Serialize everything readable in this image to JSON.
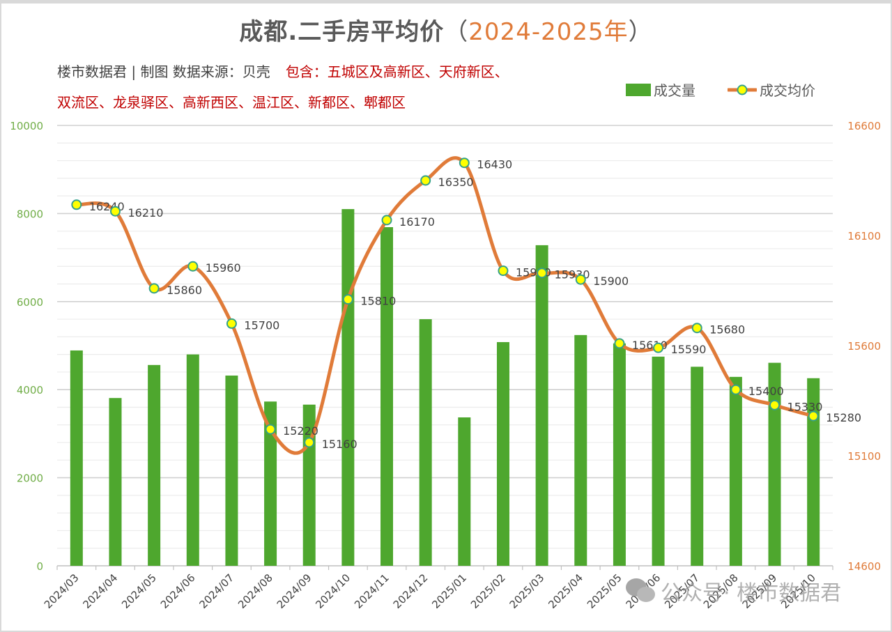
{
  "header": {
    "title_main": "成都.二手房平均价",
    "title_paren_open": "（",
    "title_years": "2024-2025年",
    "title_paren_close": "）",
    "credit": "楼市数据君 | 制图  数据来源：贝壳",
    "includes_line1": "包含：五城区及高新区、天府新区、",
    "includes_line2": "双流区、龙泉驿区、高新西区、温江区、新都区、郫都区"
  },
  "legend": {
    "bar_label": "成交量",
    "line_label": "成交均价"
  },
  "watermark": {
    "icon": "wechat-icon",
    "text": "公众号· 楼市数据君"
  },
  "colors": {
    "bar": "#4ea72e",
    "line": "#e07b39",
    "marker_fill": "#ffff00",
    "marker_stroke": "#33a08a",
    "left_axis_text": "#70ad47",
    "right_axis_text": "#e07b39",
    "grid": "#d9d9d9",
    "label_text": "#404040"
  },
  "chart_data": {
    "type": "bar+line",
    "title": "成都.二手房平均价（2024-2025年）",
    "categories": [
      "2024/03",
      "2024/04",
      "2024/05",
      "2024/06",
      "2024/07",
      "2024/08",
      "2024/09",
      "2024/10",
      "2024/11",
      "2024/12",
      "2025/01",
      "2025/02",
      "2025/03",
      "2025/04",
      "2025/05",
      "2025/06",
      "2025/07",
      "2025/08",
      "2025/09",
      "2025/10"
    ],
    "series": [
      {
        "name": "成交量",
        "type": "bar",
        "axis": "left",
        "values": [
          4890,
          3810,
          4560,
          4800,
          4320,
          3730,
          3660,
          8100,
          7690,
          5600,
          3370,
          5080,
          7280,
          5240,
          5050,
          4750,
          4520,
          4290,
          4610,
          4260
        ]
      },
      {
        "name": "成交均价",
        "type": "line",
        "axis": "right",
        "smooth": true,
        "data_labels": true,
        "values": [
          16240,
          16210,
          15860,
          15960,
          15700,
          15220,
          15160,
          15810,
          16170,
          16350,
          16430,
          15940,
          15930,
          15900,
          15610,
          15590,
          15680,
          15400,
          15330,
          15280
        ]
      }
    ],
    "left_axis": {
      "min": 0,
      "max": 10000,
      "ticks": [
        0,
        2000,
        4000,
        6000,
        8000,
        10000
      ]
    },
    "right_axis": {
      "min": 14600,
      "max": 16600,
      "ticks": [
        14600,
        15100,
        15600,
        16100,
        16600
      ]
    },
    "xlabel": "",
    "ylabel": "",
    "grid": true,
    "legend_position": "top-right"
  }
}
